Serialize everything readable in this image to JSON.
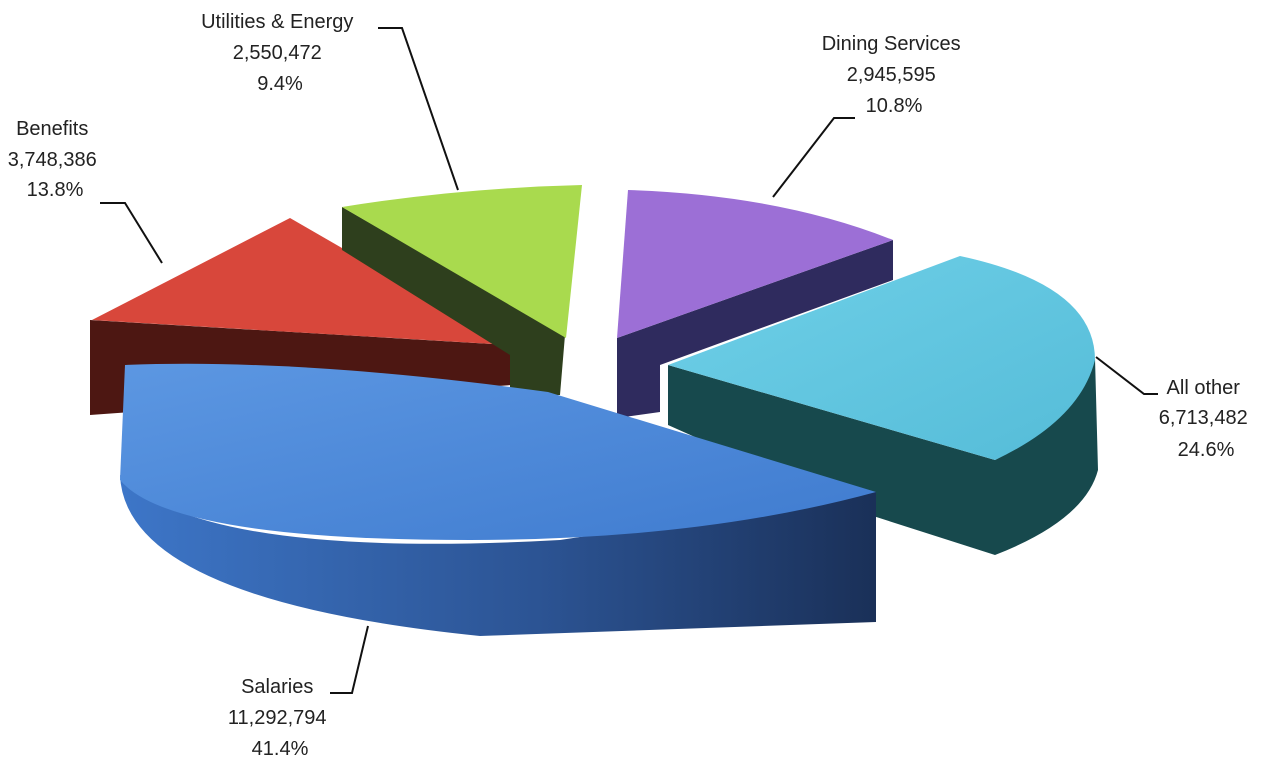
{
  "chart_data": {
    "type": "pie",
    "title": "",
    "style": "3d-exploded",
    "slices": [
      {
        "label": "Salaries",
        "value": 11292794,
        "value_text": "11,292,794",
        "percent_text": "41.4%",
        "color": "#4a86d8",
        "side_color": "#1f3a66"
      },
      {
        "label": "Benefits",
        "value": 3748386,
        "value_text": "3,748,386",
        "percent_text": "13.8%",
        "color": "#d9443a",
        "side_color": "#4a1512"
      },
      {
        "label": "Utilities & Energy",
        "value": 2550472,
        "value_text": "2,550,472",
        "percent_text": "9.4%",
        "color": "#a6d84a",
        "side_color": "#2c3d1c"
      },
      {
        "label": "Dining Services",
        "value": 2945595,
        "value_text": "2,945,595",
        "percent_text": "10.8%",
        "color": "#9b6fd4",
        "side_color": "#2e2a5c"
      },
      {
        "label": "All other",
        "value": 6713482,
        "value_text": "6,713,482",
        "percent_text": "24.6%",
        "color": "#5ec6e0",
        "side_color": "#174a4e"
      }
    ]
  }
}
